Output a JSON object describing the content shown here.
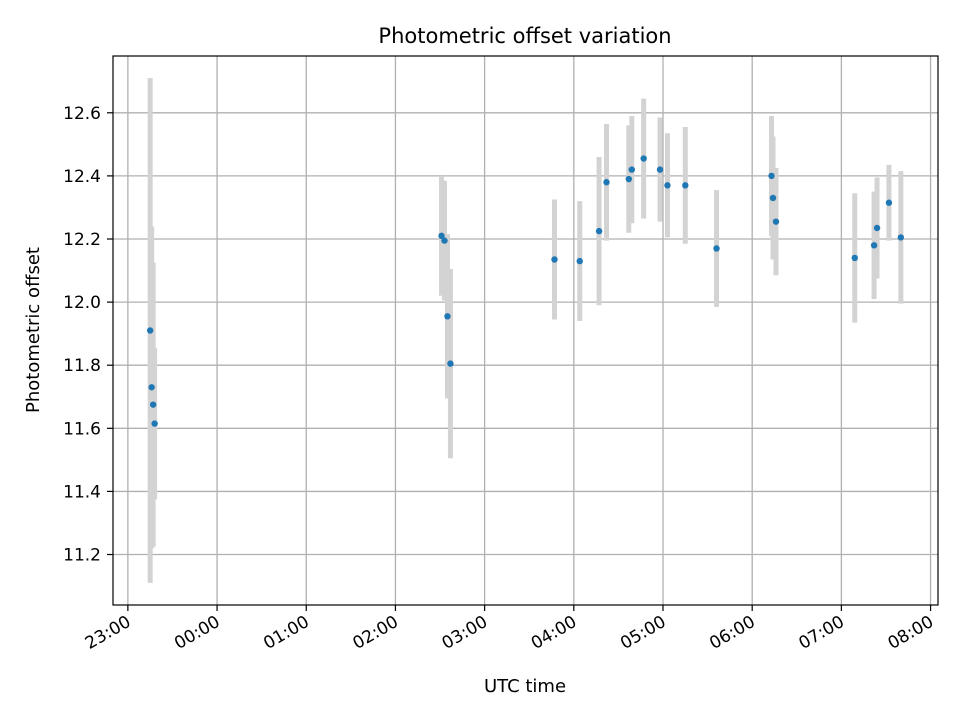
{
  "chart_data": {
    "type": "scatter",
    "title": "Photometric offset variation",
    "xlabel": "UTC time",
    "ylabel": "Photometric offset",
    "grid": true,
    "x_domain": [
      "22:50",
      "08:05"
    ],
    "ylim": [
      11.04,
      12.78
    ],
    "x_ticks": [
      "23:00",
      "00:00",
      "01:00",
      "02:00",
      "03:00",
      "04:00",
      "05:00",
      "06:00",
      "07:00",
      "08:00"
    ],
    "y_ticks": [
      11.2,
      11.4,
      11.6,
      11.8,
      12.0,
      12.2,
      12.4,
      12.6
    ],
    "colors": {
      "point": "#1f77b4",
      "error_bar": "#d3d3d3",
      "grid": "#b0b0b0"
    },
    "points": [
      {
        "x": "23:15",
        "y": 11.91,
        "err": 0.8
      },
      {
        "x": "23:16",
        "y": 11.73,
        "err": 0.51
      },
      {
        "x": "23:17",
        "y": 11.675,
        "err": 0.45
      },
      {
        "x": "23:18",
        "y": 11.615,
        "err": 0.24
      },
      {
        "x": "02:31",
        "y": 12.21,
        "err": 0.19
      },
      {
        "x": "02:33",
        "y": 12.195,
        "err": 0.19
      },
      {
        "x": "02:35",
        "y": 11.955,
        "err": 0.26
      },
      {
        "x": "02:37",
        "y": 11.805,
        "err": 0.3
      },
      {
        "x": "03:47",
        "y": 12.135,
        "err": 0.19
      },
      {
        "x": "04:04",
        "y": 12.13,
        "err": 0.19
      },
      {
        "x": "04:17",
        "y": 12.225,
        "err": 0.235
      },
      {
        "x": "04:22",
        "y": 12.38,
        "err": 0.185
      },
      {
        "x": "04:37",
        "y": 12.39,
        "err": 0.17
      },
      {
        "x": "04:39",
        "y": 12.42,
        "err": 0.17
      },
      {
        "x": "04:47",
        "y": 12.455,
        "err": 0.19
      },
      {
        "x": "04:58",
        "y": 12.42,
        "err": 0.165
      },
      {
        "x": "05:03",
        "y": 12.37,
        "err": 0.165
      },
      {
        "x": "05:15",
        "y": 12.37,
        "err": 0.185
      },
      {
        "x": "05:36",
        "y": 12.17,
        "err": 0.185
      },
      {
        "x": "06:13",
        "y": 12.4,
        "err": 0.19
      },
      {
        "x": "06:14",
        "y": 12.33,
        "err": 0.195
      },
      {
        "x": "06:16",
        "y": 12.255,
        "err": 0.17
      },
      {
        "x": "07:09",
        "y": 12.14,
        "err": 0.205
      },
      {
        "x": "07:22",
        "y": 12.18,
        "err": 0.17
      },
      {
        "x": "07:24",
        "y": 12.235,
        "err": 0.16
      },
      {
        "x": "07:32",
        "y": 12.315,
        "err": 0.12
      },
      {
        "x": "07:40",
        "y": 12.205,
        "err": 0.21
      }
    ]
  }
}
